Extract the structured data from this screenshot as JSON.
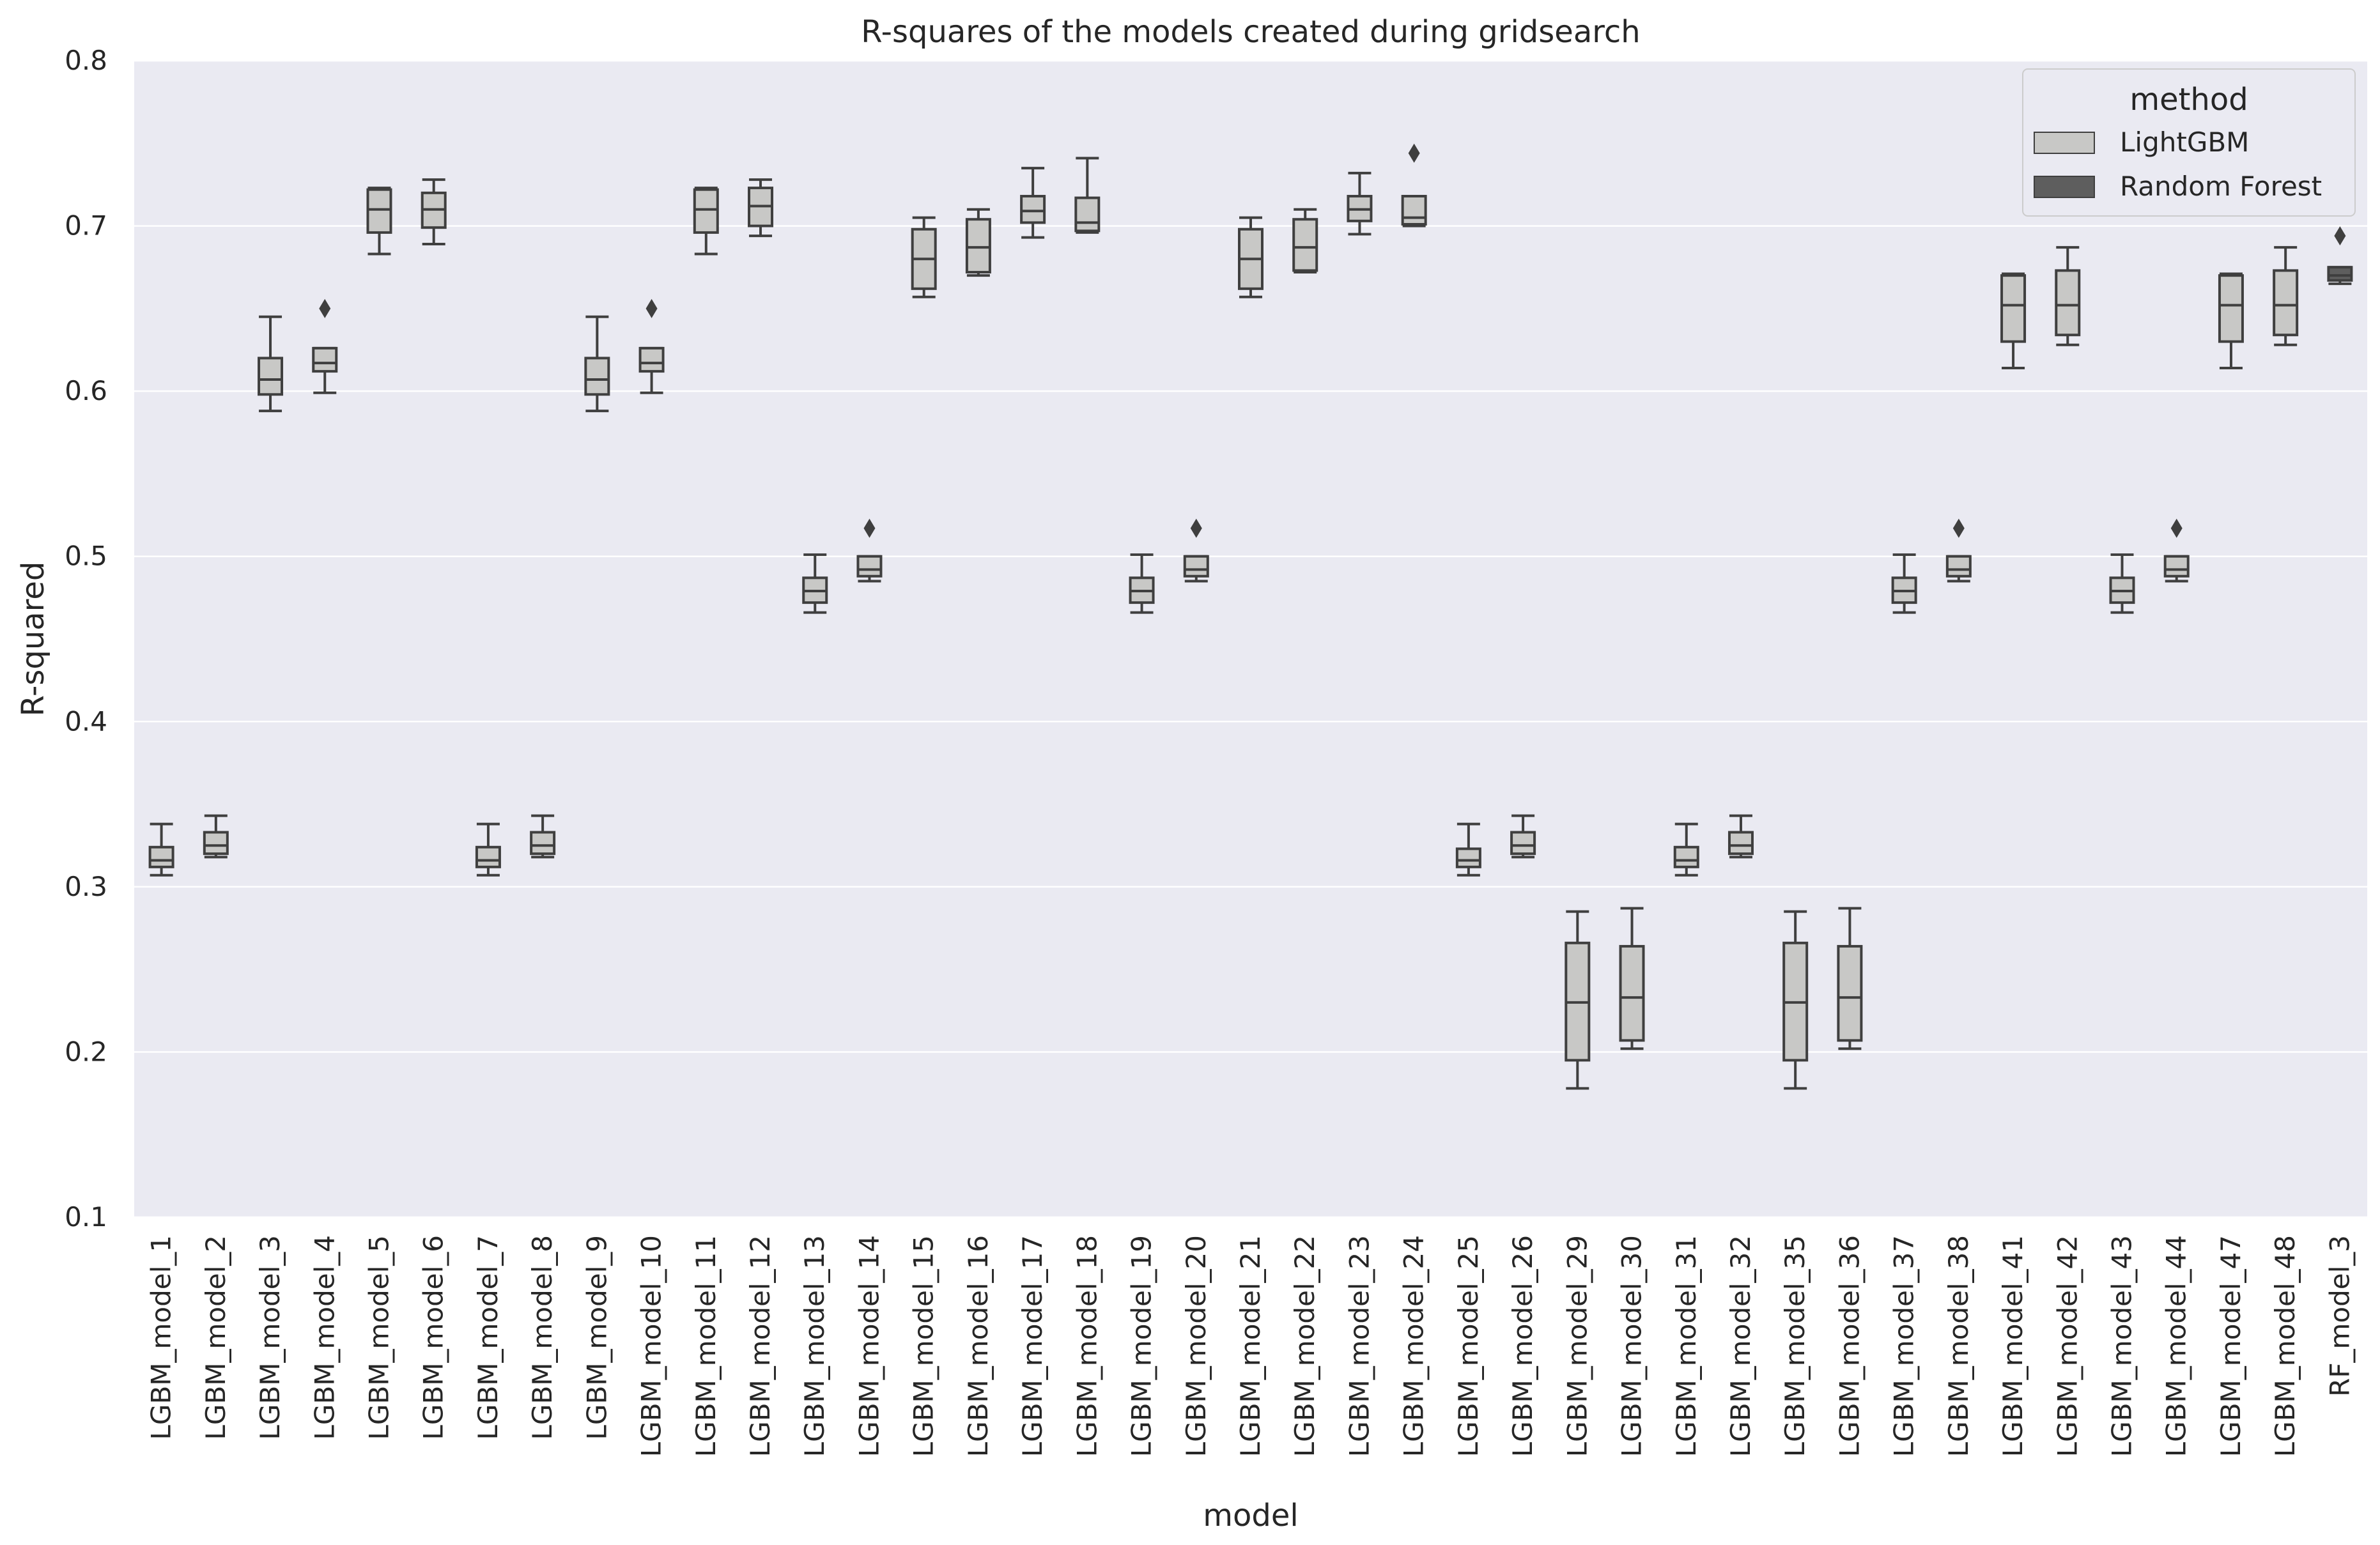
{
  "chart_data": {
    "type": "box",
    "title": "R-squares of the models created during gridsearch",
    "xlabel": "model",
    "ylabel": "R-squared",
    "ylim": [
      0.1,
      0.8
    ],
    "yticks": [
      "0.1",
      "0.2",
      "0.3",
      "0.4",
      "0.5",
      "0.6",
      "0.7",
      "0.8"
    ],
    "grid": true,
    "legend": {
      "title": "method",
      "placement": "top-right",
      "entries": [
        {
          "label": "LightGBM",
          "color": "#c8c8c6"
        },
        {
          "label": "Random Forest",
          "color": "#5e5e5e"
        }
      ]
    },
    "colors": {
      "background": "#eaeaf2",
      "grid": "#ffffff",
      "line": "#3f3f3f",
      "LightGBM": "#c8c8c6",
      "Random Forest": "#5e5e5e"
    },
    "categories": [
      "LGBM_model_1",
      "LGBM_model_2",
      "LGBM_model_3",
      "LGBM_model_4",
      "LGBM_model_5",
      "LGBM_model_6",
      "LGBM_model_7",
      "LGBM_model_8",
      "LGBM_model_9",
      "LGBM_model_10",
      "LGBM_model_11",
      "LGBM_model_12",
      "LGBM_model_13",
      "LGBM_model_14",
      "LGBM_model_15",
      "LGBM_model_16",
      "LGBM_model_17",
      "LGBM_model_18",
      "LGBM_model_19",
      "LGBM_model_20",
      "LGBM_model_21",
      "LGBM_model_22",
      "LGBM_model_23",
      "LGBM_model_24",
      "LGBM_model_25",
      "LGBM_model_26",
      "LGBM_model_29",
      "LGBM_model_30",
      "LGBM_model_31",
      "LGBM_model_32",
      "LGBM_model_35",
      "LGBM_model_36",
      "LGBM_model_37",
      "LGBM_model_38",
      "LGBM_model_41",
      "LGBM_model_42",
      "LGBM_model_43",
      "LGBM_model_44",
      "LGBM_model_47",
      "LGBM_model_48",
      "RF_model_3"
    ],
    "boxes": [
      {
        "model": "LGBM_model_1",
        "method": "LightGBM",
        "whislo": 0.307,
        "q1": 0.312,
        "median": 0.316,
        "q3": 0.324,
        "whishi": 0.338,
        "fliers": []
      },
      {
        "model": "LGBM_model_2",
        "method": "LightGBM",
        "whislo": 0.318,
        "q1": 0.32,
        "median": 0.325,
        "q3": 0.333,
        "whishi": 0.343,
        "fliers": []
      },
      {
        "model": "LGBM_model_3",
        "method": "LightGBM",
        "whislo": 0.588,
        "q1": 0.598,
        "median": 0.607,
        "q3": 0.62,
        "whishi": 0.645,
        "fliers": []
      },
      {
        "model": "LGBM_model_4",
        "method": "LightGBM",
        "whislo": 0.599,
        "q1": 0.612,
        "median": 0.617,
        "q3": 0.626,
        "whishi": 0.626,
        "fliers": [
          0.65
        ]
      },
      {
        "model": "LGBM_model_5",
        "method": "LightGBM",
        "whislo": 0.683,
        "q1": 0.696,
        "median": 0.71,
        "q3": 0.722,
        "whishi": 0.723,
        "fliers": []
      },
      {
        "model": "LGBM_model_6",
        "method": "LightGBM",
        "whislo": 0.689,
        "q1": 0.699,
        "median": 0.71,
        "q3": 0.72,
        "whishi": 0.728,
        "fliers": []
      },
      {
        "model": "LGBM_model_7",
        "method": "LightGBM",
        "whislo": 0.307,
        "q1": 0.312,
        "median": 0.316,
        "q3": 0.324,
        "whishi": 0.338,
        "fliers": []
      },
      {
        "model": "LGBM_model_8",
        "method": "LightGBM",
        "whislo": 0.318,
        "q1": 0.32,
        "median": 0.325,
        "q3": 0.333,
        "whishi": 0.343,
        "fliers": []
      },
      {
        "model": "LGBM_model_9",
        "method": "LightGBM",
        "whislo": 0.588,
        "q1": 0.598,
        "median": 0.607,
        "q3": 0.62,
        "whishi": 0.645,
        "fliers": []
      },
      {
        "model": "LGBM_model_10",
        "method": "LightGBM",
        "whislo": 0.599,
        "q1": 0.612,
        "median": 0.617,
        "q3": 0.626,
        "whishi": 0.626,
        "fliers": [
          0.65
        ]
      },
      {
        "model": "LGBM_model_11",
        "method": "LightGBM",
        "whislo": 0.683,
        "q1": 0.696,
        "median": 0.71,
        "q3": 0.722,
        "whishi": 0.723,
        "fliers": []
      },
      {
        "model": "LGBM_model_12",
        "method": "LightGBM",
        "whislo": 0.694,
        "q1": 0.7,
        "median": 0.712,
        "q3": 0.723,
        "whishi": 0.728,
        "fliers": []
      },
      {
        "model": "LGBM_model_13",
        "method": "LightGBM",
        "whislo": 0.466,
        "q1": 0.472,
        "median": 0.479,
        "q3": 0.487,
        "whishi": 0.501,
        "fliers": []
      },
      {
        "model": "LGBM_model_14",
        "method": "LightGBM",
        "whislo": 0.485,
        "q1": 0.488,
        "median": 0.492,
        "q3": 0.5,
        "whishi": 0.5,
        "fliers": [
          0.517
        ]
      },
      {
        "model": "LGBM_model_15",
        "method": "LightGBM",
        "whislo": 0.657,
        "q1": 0.662,
        "median": 0.68,
        "q3": 0.698,
        "whishi": 0.705,
        "fliers": []
      },
      {
        "model": "LGBM_model_16",
        "method": "LightGBM",
        "whislo": 0.67,
        "q1": 0.672,
        "median": 0.687,
        "q3": 0.704,
        "whishi": 0.71,
        "fliers": []
      },
      {
        "model": "LGBM_model_17",
        "method": "LightGBM",
        "whislo": 0.693,
        "q1": 0.702,
        "median": 0.709,
        "q3": 0.718,
        "whishi": 0.735,
        "fliers": []
      },
      {
        "model": "LGBM_model_18",
        "method": "LightGBM",
        "whislo": 0.696,
        "q1": 0.697,
        "median": 0.702,
        "q3": 0.717,
        "whishi": 0.741,
        "fliers": []
      },
      {
        "model": "LGBM_model_19",
        "method": "LightGBM",
        "whislo": 0.466,
        "q1": 0.472,
        "median": 0.479,
        "q3": 0.487,
        "whishi": 0.501,
        "fliers": []
      },
      {
        "model": "LGBM_model_20",
        "method": "LightGBM",
        "whislo": 0.485,
        "q1": 0.488,
        "median": 0.492,
        "q3": 0.5,
        "whishi": 0.5,
        "fliers": [
          0.517
        ]
      },
      {
        "model": "LGBM_model_21",
        "method": "LightGBM",
        "whislo": 0.657,
        "q1": 0.662,
        "median": 0.68,
        "q3": 0.698,
        "whishi": 0.705,
        "fliers": []
      },
      {
        "model": "LGBM_model_22",
        "method": "LightGBM",
        "whislo": 0.672,
        "q1": 0.673,
        "median": 0.687,
        "q3": 0.704,
        "whishi": 0.71,
        "fliers": []
      },
      {
        "model": "LGBM_model_23",
        "method": "LightGBM",
        "whislo": 0.695,
        "q1": 0.703,
        "median": 0.71,
        "q3": 0.718,
        "whishi": 0.732,
        "fliers": []
      },
      {
        "model": "LGBM_model_24",
        "method": "LightGBM",
        "whislo": 0.7,
        "q1": 0.701,
        "median": 0.705,
        "q3": 0.718,
        "whishi": 0.718,
        "fliers": [
          0.744
        ]
      },
      {
        "model": "LGBM_model_25",
        "method": "LightGBM",
        "whislo": 0.307,
        "q1": 0.312,
        "median": 0.316,
        "q3": 0.323,
        "whishi": 0.338,
        "fliers": []
      },
      {
        "model": "LGBM_model_26",
        "method": "LightGBM",
        "whislo": 0.318,
        "q1": 0.32,
        "median": 0.325,
        "q3": 0.333,
        "whishi": 0.343,
        "fliers": []
      },
      {
        "model": "LGBM_model_29",
        "method": "LightGBM",
        "whislo": 0.178,
        "q1": 0.195,
        "median": 0.23,
        "q3": 0.266,
        "whishi": 0.285,
        "fliers": []
      },
      {
        "model": "LGBM_model_30",
        "method": "LightGBM",
        "whislo": 0.202,
        "q1": 0.207,
        "median": 0.233,
        "q3": 0.264,
        "whishi": 0.287,
        "fliers": []
      },
      {
        "model": "LGBM_model_31",
        "method": "LightGBM",
        "whislo": 0.307,
        "q1": 0.312,
        "median": 0.316,
        "q3": 0.324,
        "whishi": 0.338,
        "fliers": []
      },
      {
        "model": "LGBM_model_32",
        "method": "LightGBM",
        "whislo": 0.318,
        "q1": 0.32,
        "median": 0.325,
        "q3": 0.333,
        "whishi": 0.343,
        "fliers": []
      },
      {
        "model": "LGBM_model_35",
        "method": "LightGBM",
        "whislo": 0.178,
        "q1": 0.195,
        "median": 0.23,
        "q3": 0.266,
        "whishi": 0.285,
        "fliers": []
      },
      {
        "model": "LGBM_model_36",
        "method": "LightGBM",
        "whislo": 0.202,
        "q1": 0.207,
        "median": 0.233,
        "q3": 0.264,
        "whishi": 0.287,
        "fliers": []
      },
      {
        "model": "LGBM_model_37",
        "method": "LightGBM",
        "whislo": 0.466,
        "q1": 0.472,
        "median": 0.479,
        "q3": 0.487,
        "whishi": 0.501,
        "fliers": []
      },
      {
        "model": "LGBM_model_38",
        "method": "LightGBM",
        "whislo": 0.485,
        "q1": 0.488,
        "median": 0.492,
        "q3": 0.5,
        "whishi": 0.5,
        "fliers": [
          0.517
        ]
      },
      {
        "model": "LGBM_model_41",
        "method": "LightGBM",
        "whislo": 0.614,
        "q1": 0.63,
        "median": 0.652,
        "q3": 0.67,
        "whishi": 0.671,
        "fliers": []
      },
      {
        "model": "LGBM_model_42",
        "method": "LightGBM",
        "whislo": 0.628,
        "q1": 0.634,
        "median": 0.652,
        "q3": 0.673,
        "whishi": 0.687,
        "fliers": []
      },
      {
        "model": "LGBM_model_43",
        "method": "LightGBM",
        "whislo": 0.466,
        "q1": 0.472,
        "median": 0.479,
        "q3": 0.487,
        "whishi": 0.501,
        "fliers": []
      },
      {
        "model": "LGBM_model_44",
        "method": "LightGBM",
        "whislo": 0.485,
        "q1": 0.488,
        "median": 0.492,
        "q3": 0.5,
        "whishi": 0.5,
        "fliers": [
          0.517
        ]
      },
      {
        "model": "LGBM_model_47",
        "method": "LightGBM",
        "whislo": 0.614,
        "q1": 0.63,
        "median": 0.652,
        "q3": 0.67,
        "whishi": 0.671,
        "fliers": []
      },
      {
        "model": "LGBM_model_48",
        "method": "LightGBM",
        "whislo": 0.628,
        "q1": 0.634,
        "median": 0.652,
        "q3": 0.673,
        "whishi": 0.687,
        "fliers": []
      },
      {
        "model": "RF_model_3",
        "method": "Random Forest",
        "whislo": 0.665,
        "q1": 0.667,
        "median": 0.67,
        "q3": 0.675,
        "whishi": 0.675,
        "fliers": [
          0.694
        ]
      }
    ]
  }
}
